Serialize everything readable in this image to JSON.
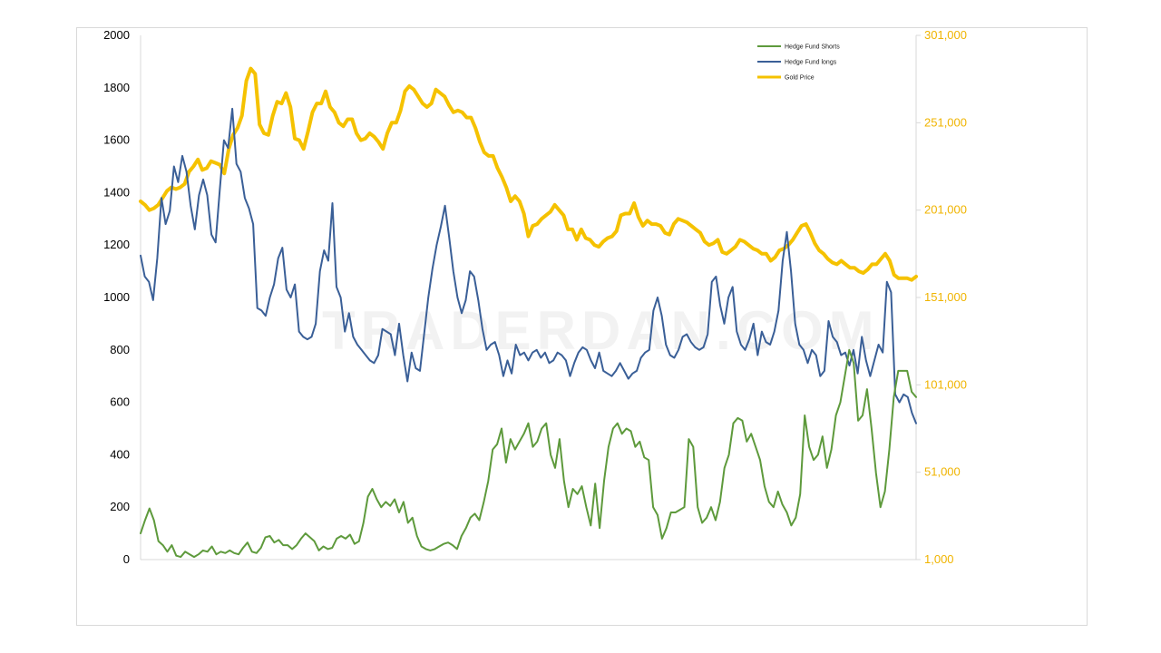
{
  "chart_data": {
    "type": "line",
    "title": "",
    "xlabel": "",
    "ylabel": "",
    "watermark": "TRADERDAN.COM",
    "y_left": {
      "lim": [
        0,
        2000
      ],
      "ticks": [
        "0",
        "200",
        "400",
        "600",
        "800",
        "1000",
        "1200",
        "1400",
        "1600",
        "1800",
        "2000"
      ],
      "tick_values": [
        0,
        200,
        400,
        600,
        800,
        1000,
        1200,
        1400,
        1600,
        1800,
        2000
      ]
    },
    "y_right": {
      "lim": [
        1000,
        301000
      ],
      "ticks": [
        "1,000",
        "51,000",
        "101,000",
        "151,000",
        "201,000",
        "251,000",
        "301,000"
      ],
      "tick_values": [
        1000,
        51000,
        101000,
        151000,
        201000,
        251000,
        301000
      ]
    },
    "legend_position": "top-right",
    "series": [
      {
        "name": "Hedge Fund Shorts",
        "color": "#5e9a3c",
        "axis": "left",
        "values": [
          100,
          150,
          195,
          150,
          70,
          55,
          30,
          55,
          15,
          10,
          30,
          20,
          10,
          20,
          35,
          30,
          50,
          20,
          30,
          25,
          35,
          25,
          20,
          45,
          65,
          30,
          25,
          45,
          85,
          90,
          65,
          75,
          55,
          55,
          40,
          55,
          80,
          100,
          85,
          70,
          35,
          50,
          40,
          45,
          80,
          90,
          80,
          95,
          60,
          70,
          140,
          240,
          270,
          230,
          200,
          220,
          205,
          230,
          180,
          220,
          140,
          160,
          90,
          50,
          40,
          35,
          40,
          50,
          60,
          65,
          55,
          40,
          90,
          120,
          160,
          175,
          150,
          220,
          300,
          420,
          440,
          500,
          370,
          460,
          420,
          450,
          480,
          520,
          430,
          450,
          500,
          520,
          400,
          350,
          460,
          300,
          200,
          270,
          250,
          280,
          200,
          130,
          290,
          120,
          300,
          430,
          500,
          520,
          480,
          500,
          490,
          430,
          450,
          390,
          380,
          200,
          170,
          80,
          120,
          180,
          180,
          190,
          200,
          460,
          430,
          200,
          140,
          160,
          200,
          150,
          220,
          350,
          400,
          520,
          540,
          530,
          450,
          480,
          430,
          380,
          280,
          220,
          200,
          260,
          210,
          180,
          130,
          160,
          250,
          550,
          430,
          380,
          400,
          470,
          350,
          420,
          550,
          600,
          700,
          800,
          750,
          530,
          550,
          650,
          500,
          330,
          200,
          260,
          420,
          620,
          720,
          720,
          720,
          640,
          620
        ]
      },
      {
        "name": "Hedge Fund longs",
        "color": "#3a5f97",
        "axis": "left",
        "values": [
          1160,
          1080,
          1060,
          990,
          1150,
          1380,
          1280,
          1330,
          1500,
          1440,
          1540,
          1480,
          1350,
          1260,
          1390,
          1450,
          1390,
          1240,
          1210,
          1410,
          1600,
          1570,
          1720,
          1510,
          1480,
          1380,
          1340,
          1280,
          960,
          950,
          930,
          1000,
          1050,
          1150,
          1190,
          1030,
          1000,
          1050,
          870,
          850,
          840,
          850,
          900,
          1100,
          1180,
          1140,
          1360,
          1040,
          1000,
          870,
          940,
          850,
          820,
          800,
          780,
          760,
          750,
          780,
          880,
          870,
          860,
          780,
          900,
          780,
          680,
          790,
          730,
          720,
          860,
          1000,
          1110,
          1200,
          1270,
          1350,
          1230,
          1100,
          1000,
          940,
          990,
          1100,
          1080,
          990,
          880,
          800,
          820,
          830,
          780,
          700,
          760,
          710,
          820,
          780,
          790,
          760,
          790,
          800,
          770,
          790,
          750,
          760,
          790,
          780,
          760,
          700,
          750,
          790,
          810,
          800,
          760,
          730,
          790,
          720,
          710,
          700,
          720,
          750,
          720,
          690,
          710,
          720,
          770,
          790,
          800,
          950,
          1000,
          930,
          820,
          780,
          770,
          800,
          850,
          860,
          830,
          810,
          800,
          810,
          860,
          1060,
          1080,
          970,
          900,
          1000,
          1040,
          870,
          820,
          800,
          840,
          900,
          780,
          870,
          830,
          820,
          870,
          950,
          1140,
          1250,
          1100,
          900,
          820,
          800,
          750,
          800,
          780,
          700,
          720,
          910,
          850,
          830,
          780,
          790,
          740,
          800,
          710,
          850,
          760,
          700,
          760,
          820,
          790,
          1060,
          1020,
          630,
          600,
          630,
          620,
          560,
          520
        ]
      },
      {
        "name": "Gold Price",
        "color": "#f5c200",
        "axis": "right",
        "values": [
          206000,
          204000,
          201000,
          202000,
          204000,
          208000,
          212000,
          214000,
          213000,
          214000,
          216000,
          223000,
          226000,
          230000,
          224000,
          225000,
          229000,
          228000,
          227000,
          222000,
          236000,
          244000,
          248000,
          255000,
          275000,
          282000,
          279000,
          250000,
          245000,
          244000,
          255000,
          263000,
          262000,
          268000,
          260000,
          242000,
          241000,
          236000,
          246000,
          257000,
          262000,
          262000,
          269000,
          260000,
          257000,
          251000,
          249000,
          253000,
          253000,
          245000,
          241000,
          242000,
          245000,
          243000,
          240000,
          236000,
          245000,
          251000,
          251000,
          258000,
          269000,
          272000,
          270000,
          266000,
          262000,
          260000,
          262000,
          270000,
          268000,
          266000,
          261000,
          257000,
          258000,
          257000,
          254000,
          254000,
          248000,
          240000,
          234000,
          232000,
          232000,
          225000,
          220000,
          214000,
          206000,
          209000,
          206000,
          199000,
          186000,
          192000,
          193000,
          196000,
          198000,
          200000,
          204000,
          201000,
          198000,
          190000,
          190000,
          184000,
          190000,
          185000,
          184000,
          181000,
          180000,
          183000,
          185000,
          186000,
          189000,
          198000,
          199000,
          199000,
          205000,
          197000,
          192000,
          195000,
          193000,
          193000,
          192000,
          188000,
          187000,
          193000,
          196000,
          195000,
          194000,
          192000,
          190000,
          188000,
          183000,
          181000,
          182000,
          184000,
          177000,
          176000,
          178000,
          180000,
          184000,
          183000,
          181000,
          179000,
          178000,
          176000,
          176000,
          172000,
          174000,
          178000,
          179000,
          181000,
          184000,
          188000,
          192000,
          193000,
          188000,
          182000,
          178000,
          176000,
          173000,
          171000,
          170000,
          172000,
          170000,
          168000,
          168000,
          166000,
          165000,
          167000,
          170000,
          170000,
          173000,
          176000,
          172000,
          164000,
          162000,
          162000,
          162000,
          161000,
          163000
        ]
      }
    ]
  }
}
